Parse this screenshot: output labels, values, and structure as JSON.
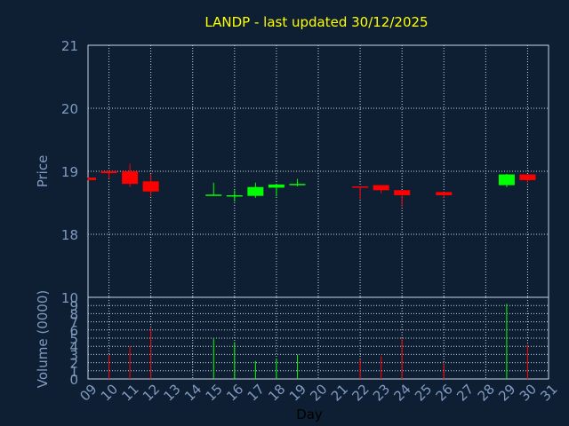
{
  "chart_data": {
    "type": "candlestick",
    "title": "LANDP - last updated 30/12/2025",
    "xlabel": "Day",
    "ylabel": "Price",
    "volume_label": "Volume (0000)",
    "x_ticks": [
      "09",
      "10",
      "11",
      "12",
      "13",
      "14",
      "15",
      "16",
      "17",
      "18",
      "19",
      "20",
      "21",
      "22",
      "23",
      "24",
      "25",
      "26",
      "27",
      "28",
      "29",
      "30",
      "31"
    ],
    "price_ticks": [
      "18",
      "19",
      "20",
      "21"
    ],
    "volume_ticks": [
      "0",
      "1",
      "2",
      "3",
      "4",
      "5",
      "6",
      "7",
      "8",
      "9",
      "10"
    ],
    "ylim": [
      17,
      21
    ],
    "volume_ylim": [
      0,
      10
    ],
    "colors": {
      "up": "#00ff00",
      "down": "#ff0000",
      "title": "#ffff00",
      "text": "#7f9bc0",
      "background": "#0f1f33"
    },
    "candles": [
      {
        "day": "09",
        "open": 18.9,
        "high": 18.9,
        "low": 18.86,
        "close": 18.86,
        "volume": 0
      },
      {
        "day": "10",
        "open": 19.0,
        "high": 19.02,
        "low": 18.88,
        "close": 18.97,
        "volume": 3.0
      },
      {
        "day": "11",
        "open": 19.0,
        "high": 19.12,
        "low": 18.75,
        "close": 18.8,
        "volume": 4.0
      },
      {
        "day": "12",
        "open": 18.84,
        "high": 18.96,
        "low": 18.6,
        "close": 18.68,
        "volume": 6.2
      },
      {
        "day": "15",
        "open": 18.62,
        "high": 18.82,
        "low": 18.62,
        "close": 18.63,
        "volume": 5.0
      },
      {
        "day": "16",
        "open": 18.61,
        "high": 18.7,
        "low": 18.52,
        "close": 18.62,
        "volume": 4.5
      },
      {
        "day": "17",
        "open": 18.61,
        "high": 18.82,
        "low": 18.58,
        "close": 18.75,
        "volume": 2.2
      },
      {
        "day": "18",
        "open": 18.74,
        "high": 18.8,
        "low": 18.6,
        "close": 18.79,
        "volume": 2.5
      },
      {
        "day": "19",
        "open": 18.79,
        "high": 18.88,
        "low": 18.76,
        "close": 18.8,
        "volume": 3.0
      },
      {
        "day": "22",
        "open": 18.76,
        "high": 18.76,
        "low": 18.56,
        "close": 18.74,
        "volume": 2.4
      },
      {
        "day": "23",
        "open": 18.78,
        "high": 18.78,
        "low": 18.65,
        "close": 18.7,
        "volume": 2.8
      },
      {
        "day": "24",
        "open": 18.7,
        "high": 18.7,
        "low": 18.44,
        "close": 18.62,
        "volume": 5.0
      },
      {
        "day": "26",
        "open": 18.67,
        "high": 18.67,
        "low": 18.58,
        "close": 18.62,
        "volume": 1.9
      },
      {
        "day": "29",
        "open": 18.78,
        "high": 18.96,
        "low": 18.75,
        "close": 18.95,
        "volume": 9.2
      },
      {
        "day": "30",
        "open": 18.95,
        "high": 18.95,
        "low": 18.82,
        "close": 18.86,
        "volume": 4.2
      }
    ]
  }
}
